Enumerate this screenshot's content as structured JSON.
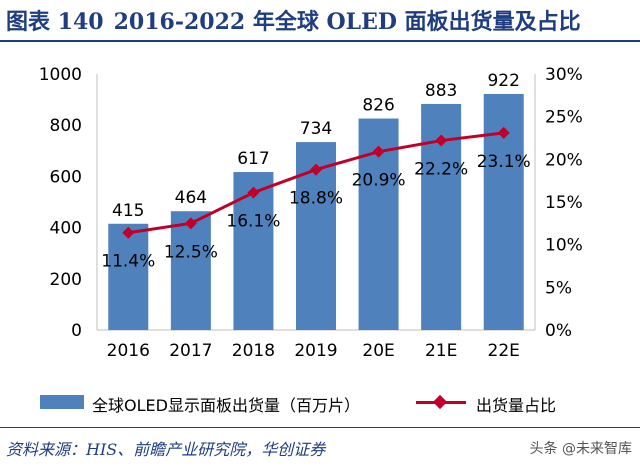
{
  "header": {
    "figure_no": "图表 140",
    "title": "2016-2022 年全球 OLED 面板出货量及占比"
  },
  "chart_data": {
    "type": "bar",
    "categories": [
      "2016",
      "2017",
      "2018",
      "2019",
      "20E",
      "21E",
      "22E"
    ],
    "series": [
      {
        "name": "全球OLED显示面板出货量（百万片）",
        "type": "bar",
        "axis": "left",
        "color": "#4f81bd",
        "values": [
          415,
          464,
          617,
          734,
          826,
          883,
          922
        ],
        "labels": [
          "415",
          "464",
          "617",
          "734",
          "826",
          "883",
          "922"
        ]
      },
      {
        "name": "出货量占比",
        "type": "line",
        "axis": "right",
        "color": "#c0002a",
        "values": [
          11.4,
          12.5,
          16.1,
          18.8,
          20.9,
          22.2,
          23.1
        ],
        "labels": [
          "11.4%",
          "12.5%",
          "16.1%",
          "18.8%",
          "20.9%",
          "22.2%",
          "23.1%"
        ]
      }
    ],
    "y_left": {
      "min": 0,
      "max": 1000,
      "ticks": [
        "0",
        "200",
        "400",
        "600",
        "800",
        "1000"
      ]
    },
    "y_right": {
      "min": 0,
      "max": 30,
      "ticks": [
        "0%",
        "5%",
        "10%",
        "15%",
        "20%",
        "25%",
        "30%"
      ]
    },
    "grid": false,
    "legend": "bottom"
  },
  "legend": {
    "bar_label": "全球OLED显示面板出货量（百万片）",
    "line_label": "出货量占比"
  },
  "source": "资料来源：HIS、前瞻产业研究院，华创证券",
  "watermark": "头条 @未来智库"
}
